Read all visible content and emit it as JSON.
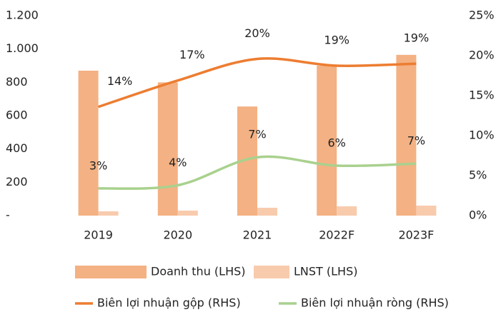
{
  "chart_data": {
    "type": "bar-line",
    "categories": [
      "2019",
      "2020",
      "2021",
      "2022F",
      "2023F"
    ],
    "series": [
      {
        "name": "Doanh thu (LHS)",
        "type": "bar",
        "color": "#f4b183",
        "values": [
          870,
          800,
          655,
          900,
          965
        ]
      },
      {
        "name": "LNST (LHS)",
        "type": "bar",
        "color": "#f8cbad",
        "values": [
          26,
          30,
          47,
          56,
          60
        ]
      },
      {
        "name": "Biên lợi nhuận gộp (RHS)",
        "type": "line",
        "axis": "y2",
        "color": "#ed7d31",
        "values": [
          13.6,
          16.9,
          19.6,
          18.75,
          19.0
        ],
        "value_labels": [
          "14%",
          "17%",
          "20%",
          "19%",
          "19%"
        ]
      },
      {
        "name": "Biên lợi nhuận ròng (RHS)",
        "type": "line",
        "axis": "y2",
        "color": "#a9d18e",
        "values": [
          3.4,
          3.8,
          7.3,
          6.25,
          6.5
        ],
        "value_labels": [
          "3%",
          "4%",
          "7%",
          "6%",
          "7%"
        ]
      }
    ],
    "ylim": [
      0,
      1200
    ],
    "yticks": [
      {
        "value": 0,
        "label": "-"
      },
      200,
      400,
      600,
      800,
      {
        "value": 1000,
        "label": "1.000"
      },
      {
        "value": 1200,
        "label": "1.200"
      }
    ],
    "y2lim": [
      0,
      25
    ],
    "y2ticks": [
      {
        "value": 0,
        "label": "0%"
      },
      {
        "value": 5,
        "label": "5%"
      },
      {
        "value": 10,
        "label": "10%"
      },
      {
        "value": 15,
        "label": "15%"
      },
      {
        "value": 20,
        "label": "20%"
      },
      {
        "value": 25,
        "label": "25%"
      }
    ],
    "grid": false
  }
}
